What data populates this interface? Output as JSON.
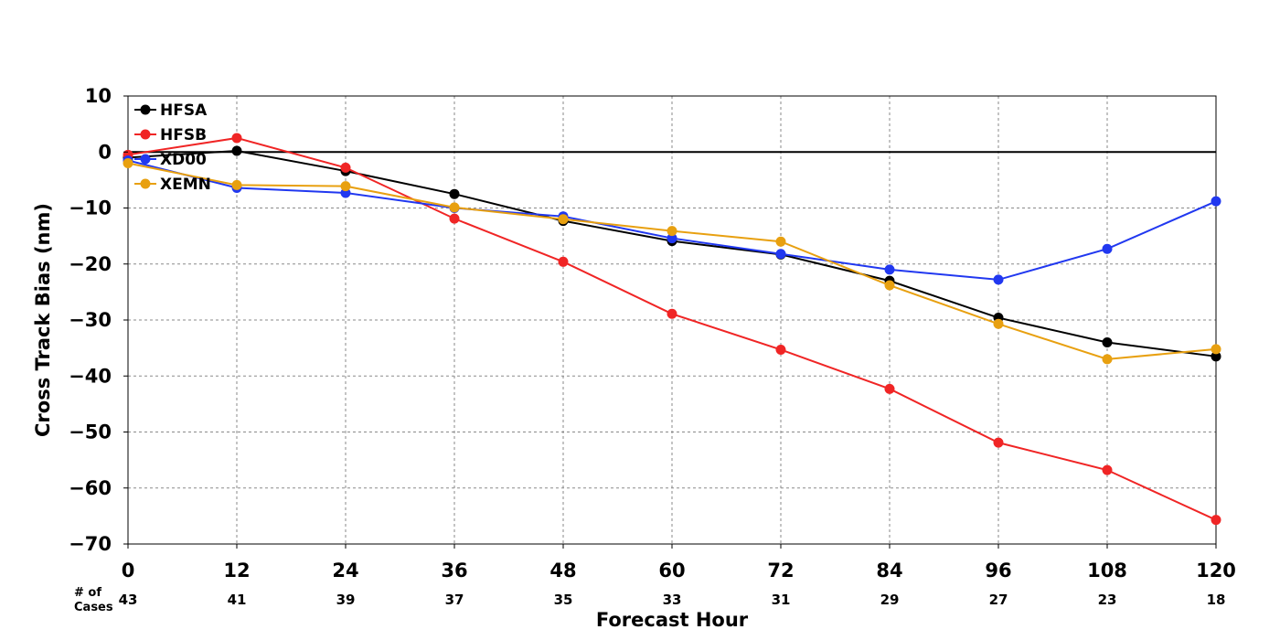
{
  "chart_data": {
    "type": "line",
    "xlabel": "Forecast Hour",
    "ylabel": "Cross Track Bias (nm)",
    "xlim": [
      0,
      120
    ],
    "ylim": [
      -70,
      10
    ],
    "x": [
      0,
      12,
      24,
      36,
      48,
      60,
      72,
      84,
      96,
      108,
      120
    ],
    "x_tick_labels": [
      "0",
      "12",
      "24",
      "36",
      "48",
      "60",
      "72",
      "84",
      "96",
      "108",
      "120"
    ],
    "y_ticks": [
      10,
      0,
      -10,
      -20,
      -30,
      -40,
      -50,
      -60,
      -70
    ],
    "y_tick_labels": [
      "10",
      "0",
      "−10",
      "−20",
      "−30",
      "−40",
      "−50",
      "−60",
      "−70"
    ],
    "grid": true,
    "legend_position": "top-left",
    "cases_title_line1": "# of",
    "cases_title_line2": "Cases",
    "cases": [
      "43",
      "41",
      "39",
      "37",
      "35",
      "33",
      "31",
      "29",
      "27",
      "23",
      "18"
    ],
    "series": [
      {
        "name": "HFSA",
        "color": "#000000",
        "values": [
          -1.0,
          0.2,
          -3.4,
          -7.5,
          -12.3,
          -15.9,
          -18.3,
          -23.0,
          -29.6,
          -34.0,
          -36.5
        ]
      },
      {
        "name": "HFSB",
        "color": "#f02525",
        "values": [
          -0.5,
          2.5,
          -2.8,
          -11.9,
          -19.6,
          -28.9,
          -35.3,
          -42.3,
          -51.9,
          -56.8,
          -65.7
        ]
      },
      {
        "name": "XD00",
        "color": "#2138f0",
        "values": [
          -1.5,
          -6.4,
          -7.3,
          -10.0,
          -11.5,
          -15.4,
          -18.2,
          -21.0,
          -22.8,
          -17.3,
          -8.8
        ]
      },
      {
        "name": "XEMN",
        "color": "#e8a010",
        "values": [
          -2.0,
          -5.9,
          -6.1,
          -9.9,
          -12.0,
          -14.1,
          -16.0,
          -23.8,
          -30.7,
          -37.0,
          -35.2
        ]
      }
    ]
  }
}
